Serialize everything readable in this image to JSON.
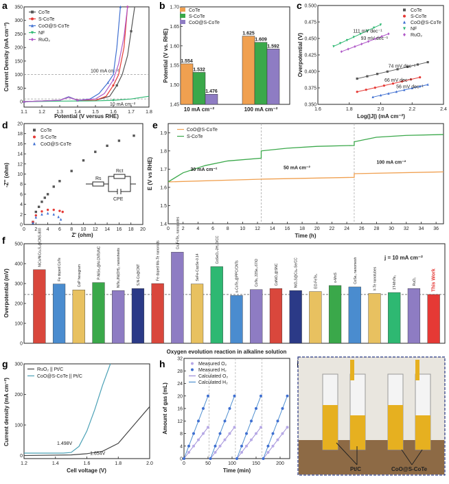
{
  "colors": {
    "CoTe": "#555555",
    "S_CoTe": "#e53935",
    "CoO_S_CoTe": "#3f6fd1",
    "NF": "#2eb872",
    "RuO2": "#b05ac8",
    "orange": "#f0a050",
    "green": "#3aa84a",
    "red": "#e53935",
    "purple": "#8e7cc3",
    "navy": "#2b3a87",
    "blue": "#4a8ccf"
  },
  "panel_labels": {
    "a": "a",
    "b": "b",
    "c": "c",
    "d": "d",
    "e": "e",
    "f": "f",
    "g": "g",
    "h": "h",
    "i": "i"
  },
  "photo": {
    "left_label": "Pt/C",
    "right_label": "CoO@S-CoTe"
  },
  "chart_data": [
    {
      "panel": "a",
      "type": "line",
      "xlabel": "Potential (V versus RHE)",
      "ylabel": "Current Density (mA cm⁻²)",
      "xlim": [
        1.1,
        1.8
      ],
      "ylim": [
        -20,
        350
      ],
      "xticks": [
        "1.1",
        "1.2",
        "1.3",
        "1.4",
        "1.5",
        "1.6",
        "1.7",
        "1.8"
      ],
      "yticks": [
        "0",
        "50",
        "100",
        "150",
        "200",
        "250",
        "300",
        "350"
      ],
      "annotations": [
        "100 mA cm⁻²",
        "10 mA cm⁻²"
      ],
      "series": [
        {
          "name": "CoTe",
          "x": [
            1.1,
            1.3,
            1.35,
            1.4,
            1.5,
            1.58,
            1.62,
            1.65,
            1.68,
            1.7,
            1.72
          ],
          "y": [
            0,
            5,
            18,
            5,
            5,
            20,
            60,
            100,
            170,
            260,
            350
          ]
        },
        {
          "name": "S-CoTe",
          "x": [
            1.1,
            1.3,
            1.35,
            1.4,
            1.5,
            1.56,
            1.6,
            1.63,
            1.66,
            1.68
          ],
          "y": [
            0,
            5,
            18,
            5,
            5,
            20,
            60,
            100,
            200,
            350
          ]
        },
        {
          "name": "CoO@S-CoTe",
          "x": [
            1.1,
            1.3,
            1.35,
            1.4,
            1.47,
            1.52,
            1.57,
            1.6,
            1.62,
            1.64
          ],
          "y": [
            0,
            5,
            18,
            5,
            10,
            30,
            70,
            100,
            200,
            350
          ]
        },
        {
          "name": "NF",
          "x": [
            1.1,
            1.3,
            1.5,
            1.6,
            1.7,
            1.8
          ],
          "y": [
            0,
            2,
            3,
            5,
            10,
            20
          ]
        },
        {
          "name": "RuO₂",
          "x": [
            1.1,
            1.3,
            1.35,
            1.4,
            1.5,
            1.55,
            1.6,
            1.63,
            1.66,
            1.68
          ],
          "y": [
            0,
            5,
            16,
            5,
            10,
            30,
            80,
            140,
            240,
            350
          ]
        }
      ]
    },
    {
      "panel": "b",
      "type": "bar",
      "ylabel": "Potential (V vs. RHE)",
      "categories": [
        "10 mA cm⁻²",
        "100 mA cm⁻²"
      ],
      "ylim": [
        1.45,
        1.7
      ],
      "yticks": [
        "1.45",
        "1.50",
        "1.55",
        "1.60",
        "1.65",
        "1.70"
      ],
      "series": [
        {
          "name": "CoTe",
          "values": [
            1.554,
            1.625
          ]
        },
        {
          "name": "S-CoTe",
          "values": [
            1.532,
            1.609
          ]
        },
        {
          "name": "CoO@S-CoTe",
          "values": [
            1.476,
            1.592
          ]
        }
      ],
      "value_labels": [
        [
          "1.554",
          "1.532",
          "1.476"
        ],
        [
          "1.625",
          "1.609",
          "1.592"
        ]
      ]
    },
    {
      "panel": "c",
      "type": "scatter",
      "xlabel": "Log(|J|) (mA cm⁻²)",
      "ylabel": "Overpotential (V)",
      "xlim": [
        1.6,
        2.4
      ],
      "ylim": [
        0.35,
        0.5
      ],
      "xticks": [
        "1.6",
        "1.8",
        "2.0",
        "2.2",
        "2.4"
      ],
      "yticks": [
        "0.350",
        "0.375",
        "0.400",
        "0.425",
        "0.450",
        "0.475",
        "0.500"
      ],
      "series": [
        {
          "name": "CoTe",
          "x": [
            1.85,
            2.3
          ],
          "y": [
            0.389,
            0.414
          ],
          "slope_label": "74 mV dec⁻¹"
        },
        {
          "name": "S-CoTe",
          "x": [
            1.85,
            2.25
          ],
          "y": [
            0.369,
            0.391
          ],
          "slope_label": "66 mV dec⁻¹"
        },
        {
          "name": "CoO@S-CoTe",
          "x": [
            1.95,
            2.3
          ],
          "y": [
            0.361,
            0.38
          ],
          "slope_label": "56 mV dec⁻¹"
        },
        {
          "name": "NF",
          "x": [
            1.7,
            2.0
          ],
          "y": [
            0.438,
            0.471
          ],
          "slope_label": "111 mV dec⁻¹"
        },
        {
          "name": "RuO₂",
          "x": [
            1.75,
            2.05
          ],
          "y": [
            0.43,
            0.457
          ],
          "slope_label": "93 mV dec⁻¹"
        }
      ]
    },
    {
      "panel": "d",
      "type": "scatter",
      "xlabel": "Z' (ohm)",
      "ylabel": "-Z'' (ohm)",
      "xlim": [
        0,
        20
      ],
      "ylim": [
        0,
        20
      ],
      "xticks": [
        "0",
        "2",
        "4",
        "6",
        "8",
        "10",
        "12",
        "14",
        "16",
        "18",
        "20"
      ],
      "yticks": [
        "0",
        "2",
        "4",
        "6",
        "8",
        "10",
        "12",
        "14",
        "16",
        "18",
        "20"
      ],
      "circuit_labels": [
        "Rs",
        "Rct",
        "CPE"
      ],
      "series": [
        {
          "name": "CoTe",
          "x": [
            1.5,
            2,
            2.5,
            3,
            3.5,
            4,
            5,
            6,
            8,
            10,
            12,
            14,
            16,
            18.5
          ],
          "y": [
            0.5,
            2.5,
            3.5,
            4.5,
            5.3,
            6,
            7.5,
            8.6,
            10.6,
            12.7,
            14.4,
            15.6,
            16.6,
            17.6
          ]
        },
        {
          "name": "S-CoTe",
          "x": [
            1.5,
            2,
            3,
            4,
            5,
            6,
            6.5
          ],
          "y": [
            0.5,
            1.8,
            2.6,
            2.9,
            2.9,
            2.7,
            2.5
          ]
        },
        {
          "name": "CoO@S-CoTe",
          "x": [
            1.5,
            2,
            3,
            4,
            5,
            5.8,
            6.2
          ],
          "y": [
            0.3,
            1.4,
            2.0,
            2.2,
            2.0,
            1.5,
            1.0
          ]
        }
      ]
    },
    {
      "panel": "e",
      "type": "line",
      "xlabel": "Time (h)",
      "ylabel": "E (V vs RHE)",
      "xlim": [
        0,
        37
      ],
      "ylim": [
        1.4,
        1.95
      ],
      "xticks": [
        "0",
        "2",
        "4",
        "6",
        "8",
        "10",
        "12",
        "14",
        "16",
        "18",
        "20",
        "22",
        "24",
        "26",
        "28",
        "30",
        "32",
        "34",
        "36"
      ],
      "yticks": [
        "1.4",
        "1.5",
        "1.6",
        "1.7",
        "1.8",
        "1.9"
      ],
      "annotations": [
        "30 mA cm⁻²",
        "50 mA cm⁻²",
        "100 mA cm⁻²"
      ],
      "series": [
        {
          "name": "CoO@S-CoTe",
          "x": [
            0,
            12.5,
            12.5,
            25,
            25,
            37
          ],
          "y": [
            1.63,
            1.645,
            1.645,
            1.655,
            1.675,
            1.685
          ]
        },
        {
          "name": "S-CoTe",
          "x": [
            0,
            2,
            5,
            8,
            12.5,
            12.5,
            16,
            20,
            25,
            25,
            28,
            32,
            37
          ],
          "y": [
            1.63,
            1.68,
            1.72,
            1.745,
            1.76,
            1.8,
            1.815,
            1.825,
            1.83,
            1.85,
            1.875,
            1.885,
            1.89
          ]
        }
      ]
    },
    {
      "panel": "f",
      "type": "bar",
      "ylabel": "Overpotential (mV)",
      "xlabel": "Oxygen evolution reaction in alkaline solution",
      "ylim": [
        0,
        500
      ],
      "yticks": [
        "0",
        "100",
        "200",
        "300",
        "400",
        "500"
      ],
      "annotation": "j = 10 mA cm⁻²",
      "categories": [
        "NiCo/NiCo₂S₄@CNS-800",
        "Fe doped CoTe",
        "CoP hexagram",
        "P-NiSe₂@N-CNTs/NC",
        "NiTe₂/Ni(OH)₂ nanosheets",
        "S,N-Co@CNT",
        "Fe doped Mo-Te nanorods",
        "Co₂FeTe₄ nanoplates",
        "SeFe-CopSe-0.14",
        "CoSeO₃-2H₂O/CC",
        "o-CoTe₂@PPC/CNTs",
        "CoTe₁.33Se₀.67/Ω",
        "CoNiO₂@SNC",
        "NiO₃S@Co₈-Se/CC",
        "EO-FeTe₂",
        "o-MnS",
        "CoSe₂ nanomesh",
        "Ir-Te nanotubes",
        "1T-MnTe₂",
        "RuO₂",
        "This Work"
      ],
      "values": [
        370,
        298,
        268,
        305,
        265,
        275,
        300,
        458,
        298,
        385,
        240,
        270,
        275,
        265,
        260,
        290,
        283,
        250,
        255,
        275,
        245
      ],
      "bar_colors": [
        "#d9473c",
        "#4a8ccf",
        "#e8c160",
        "#3aa84a",
        "#8e7cc3",
        "#2b3a87",
        "#d9473c",
        "#8e7cc3",
        "#e8c160",
        "#2eb872",
        "#4a8ccf",
        "#8e7cc3",
        "#d9473c",
        "#2b3a87",
        "#e8c160",
        "#3aa84a",
        "#4a8ccf",
        "#e8c160",
        "#2eb872",
        "#8e7cc3",
        "#e53935"
      ]
    },
    {
      "panel": "g",
      "type": "line",
      "xlabel": "Cell voltage (V)",
      "ylabel": "Current density (mA cm⁻²)",
      "xlim": [
        1.2,
        2.0
      ],
      "ylim": [
        -10,
        300
      ],
      "xticks": [
        "1.2",
        "1.4",
        "1.6",
        "1.8",
        "2.0"
      ],
      "yticks": [
        "0",
        "100",
        "200",
        "300"
      ],
      "annotations": [
        "1.498V",
        "1.654V"
      ],
      "series": [
        {
          "name": "RuO₂ || Pt/C",
          "x": [
            1.2,
            1.5,
            1.6,
            1.7,
            1.8,
            1.9,
            2.0
          ],
          "y": [
            0,
            2,
            6,
            14,
            40,
            100,
            160
          ]
        },
        {
          "name": "CoO@S-CoTe || Pt/C",
          "x": [
            1.2,
            1.45,
            1.5,
            1.55,
            1.6,
            1.65,
            1.7,
            1.75
          ],
          "y": [
            8,
            8,
            10,
            30,
            80,
            150,
            230,
            300
          ]
        }
      ]
    },
    {
      "panel": "h",
      "type": "scatter",
      "xlabel": "Time (min)",
      "ylabel": "Amount of gas (mL)",
      "xlim": [
        0,
        220
      ],
      "ylim": [
        0,
        32
      ],
      "xticks": [
        "0",
        "50",
        "100",
        "150",
        "200"
      ],
      "yticks": [
        "0",
        "4",
        "8",
        "12",
        "16",
        "20",
        "24",
        "28",
        "32"
      ],
      "series": [
        {
          "name": "Measured O₂",
          "x": [
            0,
            10,
            20,
            30,
            40,
            50,
            55,
            65,
            75,
            85,
            95,
            105,
            110,
            120,
            130,
            140,
            150,
            160,
            165,
            175,
            185,
            195,
            205,
            215
          ],
          "y": [
            0,
            2,
            4,
            6,
            8,
            10,
            0,
            2,
            4,
            6,
            8,
            10,
            0,
            2,
            4,
            6,
            8,
            10,
            0,
            2,
            4,
            6,
            8,
            10
          ]
        },
        {
          "name": "Measured H₂",
          "x": [
            0,
            10,
            20,
            30,
            40,
            50,
            55,
            65,
            75,
            85,
            95,
            105,
            110,
            120,
            130,
            140,
            150,
            160,
            165,
            175,
            185,
            195,
            205,
            215
          ],
          "y": [
            0,
            4,
            8,
            12,
            16,
            20,
            0,
            4,
            8,
            12,
            16,
            20,
            0,
            4,
            8,
            12,
            16,
            20,
            0,
            4,
            8,
            12,
            16,
            20
          ]
        },
        {
          "name": "Calculated O₂"
        },
        {
          "name": "Calculated H₂"
        }
      ]
    }
  ]
}
